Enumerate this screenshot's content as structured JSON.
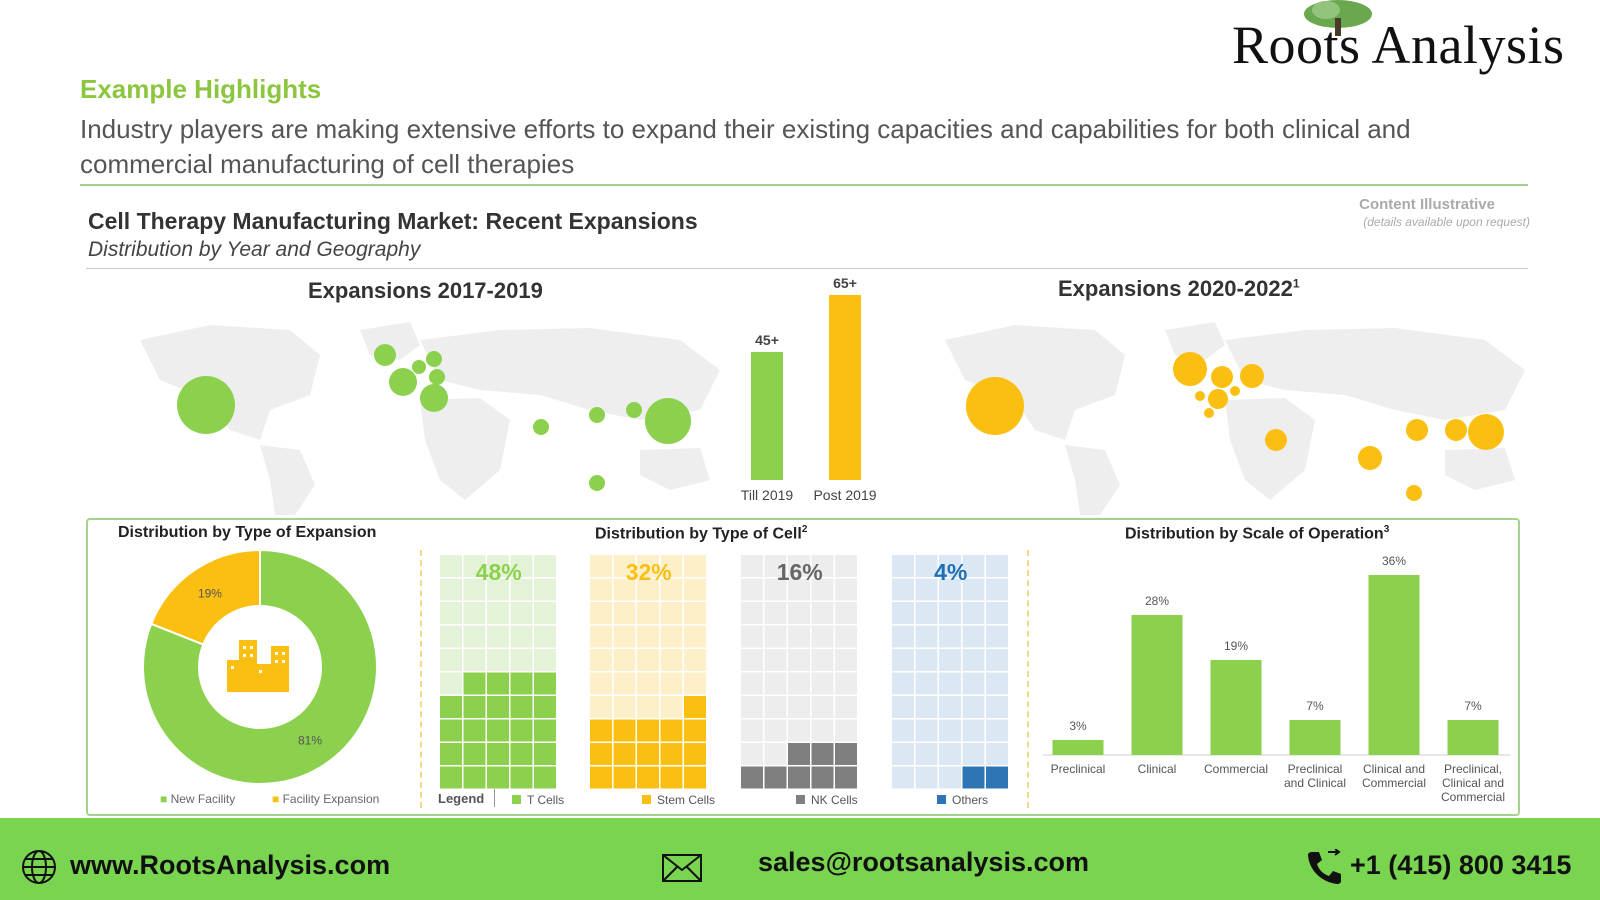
{
  "brand": {
    "logo_text": "Roots Analysis"
  },
  "header": {
    "highlight_title": "Example Highlights",
    "headline": "Industry players are making extensive efforts to expand their existing capacities and capabilities for both clinical and commercial manufacturing of cell therapies",
    "content_illustrative": "Content Illustrative",
    "content_illustrative_sub": "(details available upon request)"
  },
  "chart_title": "Cell Therapy Manufacturing Market: Recent Expansions",
  "chart_subtitle": "Distribution by Year and Geography",
  "maps": {
    "left_title": "Expansions 2017-2019",
    "right_title": "Expansions 2020-2022",
    "right_title_sup": "1",
    "colors": {
      "till_2019": "#8cd14e",
      "post_2019": "#fbbf12"
    }
  },
  "panels": {
    "expansion_title": "Distribution by Type of Expansion",
    "cell_title": "Distribution by Type of Cell",
    "cell_title_sup": "2",
    "scale_title": "Distribution by Scale of Operation",
    "scale_title_sup": "3",
    "donut_legend": [
      "New Facility",
      "Facility Expansion"
    ],
    "cell_legend_label": "Legend"
  },
  "footer": {
    "website": "www.RootsAnalysis.com",
    "email": "sales@rootsanalysis.com",
    "phone": "+1 (415) 800 3415"
  },
  "chart_data": [
    {
      "type": "bar",
      "categories": [
        "Till 2019",
        "Post 2019"
      ],
      "values": [
        45,
        65
      ],
      "data_labels": [
        "45+",
        "65+"
      ],
      "colors": [
        "#8cd14e",
        "#fbbf12"
      ]
    },
    {
      "type": "pie",
      "title": "Distribution by Type of Expansion",
      "labels": [
        "New Facility",
        "Facility Expansion"
      ],
      "values": [
        81,
        19
      ],
      "data_labels": [
        "81%",
        "19%"
      ],
      "colors": [
        "#8cd14e",
        "#fbbf12"
      ]
    },
    {
      "type": "waffle",
      "title": "Distribution by Type of Cell",
      "labels": [
        "T Cells",
        "Stem Cells",
        "NK Cells",
        "Others"
      ],
      "values": [
        48,
        32,
        16,
        4
      ],
      "data_labels": [
        "48%",
        "32%",
        "16%",
        "4%"
      ],
      "colors": [
        "#8cd14e",
        "#fbbf12",
        "#7f7f7f",
        "#2e75b6"
      ],
      "light_colors": [
        "#e4f2d8",
        "#fdf0c8",
        "#ededed",
        "#dbe8f4"
      ]
    },
    {
      "type": "bar",
      "title": "Distribution by Scale of Operation",
      "categories": [
        "Preclinical",
        "Clinical",
        "Commercial",
        "Preclinical and Clinical",
        "Clinical and Commercial",
        "Preclinical, Clinical and Commercial"
      ],
      "category_lines": [
        [
          "Preclinical"
        ],
        [
          "Clinical"
        ],
        [
          "Commercial"
        ],
        [
          "Preclinical",
          "and Clinical"
        ],
        [
          "Clinical and",
          "Commercial"
        ],
        [
          "Preclinical,",
          "Clinical and",
          "Commercial"
        ]
      ],
      "values": [
        3,
        28,
        19,
        7,
        36,
        7
      ],
      "data_labels": [
        "3%",
        "28%",
        "19%",
        "7%",
        "36%",
        "7%"
      ],
      "color": "#8cd14e"
    }
  ]
}
